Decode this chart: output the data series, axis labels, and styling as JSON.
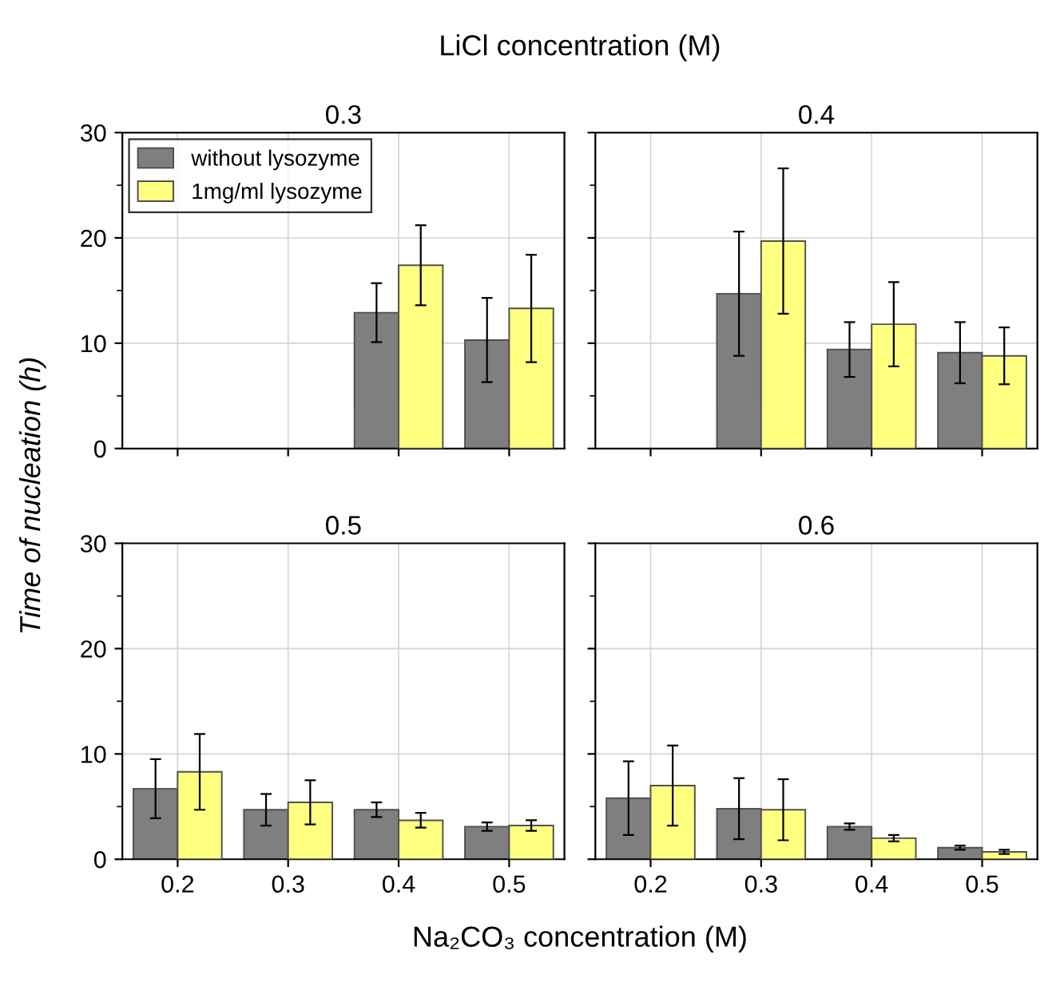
{
  "chart_data": [
    {
      "type": "bar",
      "title": "0.3",
      "annotations": [
        "LiCl concentration (M)"
      ],
      "xlabel": "Na₂CO₃ concentration (M)",
      "ylabel": "Time of nucleation (h)",
      "legend": "top left",
      "grid": true,
      "tick_labels": "y",
      "categories": [
        "0.2",
        "0.3",
        "0.4",
        "0.5"
      ],
      "ylim": [
        0,
        30
      ],
      "yticks": [
        0,
        {
          "value": 5,
          "label": null
        },
        10,
        {
          "value": 15,
          "label": null
        },
        20,
        {
          "value": 25,
          "label": null
        },
        30
      ],
      "series": [
        {
          "name": "without lysozyme",
          "color": "#7f7f7f",
          "values": [
            null,
            null,
            12.9,
            10.3
          ],
          "errors": [
            null,
            null,
            2.8,
            4.0
          ]
        },
        {
          "name": "1mg/ml lysozyme",
          "color": "#ffff80",
          "values": [
            null,
            null,
            17.4,
            13.3
          ],
          "errors": [
            null,
            null,
            3.8,
            5.1
          ]
        }
      ]
    },
    {
      "type": "bar",
      "title": "0.4",
      "grid": true,
      "tick_labels": false,
      "categories": [
        "0.2",
        "0.3",
        "0.4",
        "0.5"
      ],
      "ylim": [
        0,
        30
      ],
      "yticks": [
        0,
        {
          "value": 5,
          "label": null
        },
        10,
        {
          "value": 15,
          "label": null
        },
        20,
        {
          "value": 25,
          "label": null
        },
        30
      ],
      "series": [
        {
          "color": "#7f7f7f",
          "values": [
            null,
            14.7,
            9.4,
            9.1
          ],
          "errors": [
            null,
            5.9,
            2.6,
            2.9
          ]
        },
        {
          "color": "#ffff80",
          "values": [
            null,
            19.7,
            11.8,
            8.8
          ],
          "errors": [
            null,
            6.9,
            4.0,
            2.7
          ]
        }
      ]
    },
    {
      "type": "bar",
      "title": "0.5",
      "grid": true,
      "categories": [
        "0.2",
        "0.3",
        "0.4",
        "0.5"
      ],
      "ylim": [
        0,
        30
      ],
      "yticks": [
        0,
        {
          "value": 5,
          "label": null
        },
        10,
        {
          "value": 15,
          "label": null
        },
        20,
        {
          "value": 25,
          "label": null
        },
        30
      ],
      "series": [
        {
          "color": "#7f7f7f",
          "values": [
            6.7,
            4.7,
            4.7,
            3.1
          ],
          "errors": [
            2.8,
            1.5,
            0.7,
            0.4
          ]
        },
        {
          "color": "#ffff80",
          "values": [
            8.3,
            5.4,
            3.7,
            3.2
          ],
          "errors": [
            3.6,
            2.1,
            0.7,
            0.5
          ]
        }
      ]
    },
    {
      "type": "bar",
      "title": "0.6",
      "grid": true,
      "tick_labels": "x",
      "categories": [
        "0.2",
        "0.3",
        "0.4",
        "0.5"
      ],
      "ylim": [
        0,
        30
      ],
      "yticks": [
        0,
        {
          "value": 5,
          "label": null
        },
        10,
        {
          "value": 15,
          "label": null
        },
        20,
        {
          "value": 25,
          "label": null
        },
        30
      ],
      "series": [
        {
          "color": "#7f7f7f",
          "values": [
            5.8,
            4.8,
            3.1,
            1.1
          ],
          "errors": [
            3.5,
            2.9,
            0.3,
            0.2
          ]
        },
        {
          "color": "#ffff80",
          "values": [
            7.0,
            4.7,
            2.0,
            0.7
          ],
          "errors": [
            3.8,
            2.9,
            0.3,
            0.2
          ]
        }
      ]
    }
  ]
}
